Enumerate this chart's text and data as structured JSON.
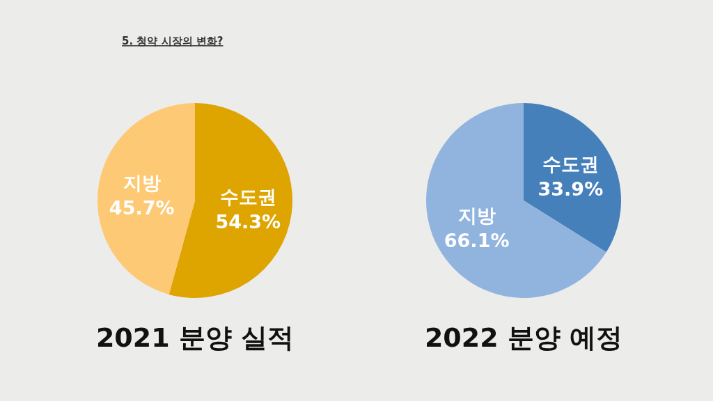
{
  "chart_data": [
    {
      "type": "pie",
      "title": "2021  분양 실적",
      "annotations": [
        "5. 청약 시장의 변화?"
      ],
      "categories": [
        "수도권",
        "지방"
      ],
      "values": [
        54.3,
        45.7
      ],
      "colors": [
        "#dea400",
        "#fdc974"
      ],
      "value_labels": [
        "54.3%",
        "45.7%"
      ]
    },
    {
      "type": "pie",
      "title": "2022 분양 예정",
      "categories": [
        "수도권",
        "지방"
      ],
      "values": [
        33.9,
        66.1
      ],
      "colors": [
        "#4580bb",
        "#91b4de"
      ],
      "value_labels": [
        "33.9%",
        "66.1%"
      ]
    }
  ]
}
